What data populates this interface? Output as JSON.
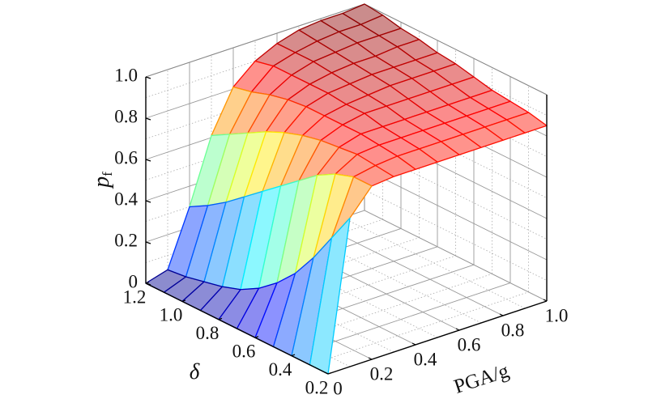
{
  "chart_data": {
    "type": "surface",
    "xlabel": "PGA/g",
    "ylabel": "δ",
    "zlabel": "p",
    "zlabel_subscript": "f",
    "colormap": "jet",
    "grid": true,
    "xlim": [
      0,
      1
    ],
    "ylim": [
      0.2,
      1.2
    ],
    "zlim": [
      0,
      1
    ],
    "xticks": [
      0,
      0.2,
      0.4,
      0.6,
      0.8,
      {
        "value": 1,
        "label": "1.0"
      }
    ],
    "yticks": [
      0.2,
      0.4,
      0.6,
      0.8,
      {
        "value": 1,
        "label": "1.0"
      },
      1.2
    ],
    "zticks": [
      0,
      0.2,
      0.4,
      0.6,
      0.8,
      {
        "value": 1,
        "label": "1.0"
      }
    ],
    "x": [
      0,
      0.1,
      0.2,
      0.3,
      0.4,
      0.5,
      0.6,
      0.7,
      0.8,
      0.9,
      1
    ],
    "y": [
      0.2,
      0.3,
      0.4,
      0.5,
      0.6,
      0.7,
      0.8,
      0.9,
      1,
      1.1,
      1.2
    ],
    "z": [
      [
        0,
        0.72,
        0.84,
        0.85,
        0.85,
        0.85,
        0.85,
        0.85,
        0.85,
        0.85,
        0.85
      ],
      [
        0,
        0.58,
        0.84,
        0.86,
        0.87,
        0.87,
        0.87,
        0.87,
        0.87,
        0.87,
        0.87
      ],
      [
        0,
        0.44,
        0.81,
        0.87,
        0.88,
        0.88,
        0.88,
        0.88,
        0.88,
        0.88,
        0.88
      ],
      [
        0,
        0.32,
        0.76,
        0.86,
        0.89,
        0.89,
        0.89,
        0.89,
        0.89,
        0.89,
        0.89
      ],
      [
        0,
        0.23,
        0.69,
        0.85,
        0.89,
        0.91,
        0.91,
        0.91,
        0.91,
        0.91,
        0.91
      ],
      [
        0,
        0.16,
        0.62,
        0.83,
        0.89,
        0.91,
        0.92,
        0.93,
        0.93,
        0.93,
        0.93
      ],
      [
        0,
        0.11,
        0.55,
        0.8,
        0.89,
        0.92,
        0.93,
        0.94,
        0.94,
        0.94,
        0.94
      ],
      [
        0,
        0.08,
        0.48,
        0.76,
        0.88,
        0.92,
        0.94,
        0.95,
        0.95,
        0.96,
        0.96
      ],
      [
        0,
        0.06,
        0.41,
        0.71,
        0.86,
        0.92,
        0.95,
        0.96,
        0.97,
        0.97,
        0.97
      ],
      [
        0,
        0.04,
        0.35,
        0.66,
        0.83,
        0.92,
        0.95,
        0.97,
        0.98,
        0.98,
        0.99
      ],
      [
        0,
        0.03,
        0.3,
        0.61,
        0.81,
        0.9,
        0.95,
        0.98,
        0.99,
        0.99,
        1
      ]
    ]
  }
}
